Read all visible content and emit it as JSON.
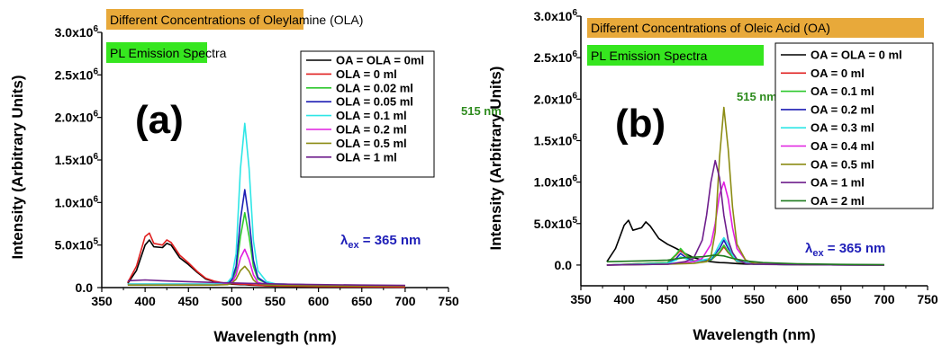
{
  "colors": {
    "orange_banner": "#E8A93A",
    "green_banner": "#36E61F",
    "peak_label": "#2E8B1E",
    "excitation_label": "#1F1FB8"
  },
  "chart_data": [
    {
      "type": "line",
      "panel_label": "(a)",
      "title": "Different Concentrations of Oleylamine (OLA)",
      "subtitle": "PL Emission Spectra",
      "xlabel": "Wavelength (nm)",
      "ylabel": "Intensity (Arbitrary Units)",
      "xlim": [
        350,
        750
      ],
      "ylim": [
        0,
        3000000
      ],
      "x_ticks": [
        "350",
        "400",
        "450",
        "500",
        "550",
        "600",
        "650",
        "700",
        "750"
      ],
      "y_ticks": [
        {
          "value": 0,
          "base": "0.0",
          "exp": ""
        },
        {
          "value": 500000,
          "base": "5.0x10",
          "exp": "5"
        },
        {
          "value": 1000000,
          "base": "1.0x10",
          "exp": "6"
        },
        {
          "value": 1500000,
          "base": "1.5x10",
          "exp": "6"
        },
        {
          "value": 2000000,
          "base": "2.0x10",
          "exp": "6"
        },
        {
          "value": 2500000,
          "base": "2.5x10",
          "exp": "6"
        },
        {
          "value": 3000000,
          "base": "3.0x10",
          "exp": "6"
        }
      ],
      "peak_annotation": "515 nm",
      "excitation_annotation": {
        "prefix": "λ",
        "sub": "ex",
        "suffix": " = 365 nm"
      },
      "legend_position": "top-right",
      "series": [
        {
          "name": "OA = OLA = 0ml",
          "color": "#000000",
          "x": [
            380,
            390,
            400,
            405,
            410,
            420,
            425,
            430,
            440,
            450,
            460,
            470,
            480,
            490,
            500,
            510,
            515,
            520,
            530,
            540,
            550,
            560,
            600,
            650,
            700
          ],
          "y": [
            50000,
            200000,
            500000,
            560000,
            480000,
            470000,
            520000,
            500000,
            350000,
            270000,
            180000,
            100000,
            70000,
            50000,
            40000,
            35000,
            35000,
            30000,
            25000,
            20000,
            18000,
            16000,
            12000,
            8000,
            5000
          ]
        },
        {
          "name": "OLA = 0 ml",
          "color": "#E02020",
          "x": [
            380,
            390,
            400,
            405,
            410,
            420,
            425,
            430,
            440,
            450,
            460,
            470,
            480,
            490,
            500,
            510,
            515,
            520,
            530,
            540,
            550,
            560,
            600,
            650,
            700
          ],
          "y": [
            60000,
            250000,
            600000,
            640000,
            520000,
            500000,
            560000,
            530000,
            380000,
            290000,
            190000,
            110000,
            75000,
            55000,
            45000,
            40000,
            40000,
            35000,
            28000,
            22000,
            20000,
            18000,
            13000,
            9000,
            6000
          ]
        },
        {
          "name": "OLA = 0.02 ml",
          "color": "#2EC82E",
          "x": [
            380,
            450,
            480,
            495,
            500,
            505,
            510,
            515,
            520,
            525,
            530,
            540,
            550,
            560,
            600,
            700
          ],
          "y": [
            40000,
            40000,
            40000,
            50000,
            80000,
            200000,
            600000,
            880000,
            600000,
            250000,
            100000,
            50000,
            40000,
            40000,
            30000,
            20000
          ]
        },
        {
          "name": "OLA = 0.05 ml",
          "color": "#1E1EB4",
          "x": [
            380,
            450,
            480,
            495,
            500,
            505,
            510,
            515,
            520,
            525,
            530,
            540,
            550,
            560,
            600,
            700
          ],
          "y": [
            40000,
            40000,
            40000,
            50000,
            90000,
            250000,
            800000,
            1150000,
            800000,
            320000,
            120000,
            50000,
            40000,
            40000,
            30000,
            20000
          ]
        },
        {
          "name": "OLA = 0.1 ml",
          "color": "#2EE6E6",
          "x": [
            380,
            450,
            480,
            495,
            500,
            505,
            510,
            515,
            520,
            525,
            530,
            540,
            550,
            560,
            600,
            700
          ],
          "y": [
            40000,
            40000,
            40000,
            60000,
            120000,
            400000,
            1400000,
            1930000,
            1400000,
            550000,
            200000,
            70000,
            45000,
            40000,
            30000,
            20000
          ]
        },
        {
          "name": "OLA = 0.2 ml",
          "color": "#E01EE0",
          "x": [
            380,
            450,
            480,
            495,
            500,
            505,
            510,
            515,
            520,
            525,
            530,
            540,
            550,
            560,
            600,
            700
          ],
          "y": [
            30000,
            30000,
            30000,
            40000,
            60000,
            150000,
            350000,
            450000,
            330000,
            150000,
            60000,
            35000,
            30000,
            30000,
            25000,
            20000
          ]
        },
        {
          "name": "OLA = 0.5 ml",
          "color": "#8C8C14",
          "x": [
            380,
            450,
            480,
            495,
            500,
            505,
            510,
            515,
            520,
            525,
            530,
            540,
            550,
            560,
            600,
            700
          ],
          "y": [
            30000,
            30000,
            30000,
            35000,
            50000,
            100000,
            200000,
            250000,
            190000,
            90000,
            45000,
            30000,
            28000,
            25000,
            20000,
            18000
          ]
        },
        {
          "name": "OLA = 1 ml",
          "color": "#6E1E8C",
          "x": [
            380,
            400,
            420,
            450,
            480,
            500,
            520,
            540,
            560,
            600,
            650,
            700
          ],
          "y": [
            80000,
            90000,
            80000,
            70000,
            60000,
            55000,
            50000,
            45000,
            40000,
            35000,
            30000,
            25000
          ]
        }
      ]
    },
    {
      "type": "line",
      "panel_label": "(b)",
      "title": "Different Concentrations of Oleic Acid (OA)",
      "subtitle": "PL Emission Spectra",
      "xlabel": "Wavelength (nm)",
      "ylabel": "Intensity (Arbitrary Units)",
      "xlim": [
        350,
        750
      ],
      "ylim": [
        -250000,
        3000000
      ],
      "x_ticks": [
        "350",
        "400",
        "450",
        "500",
        "550",
        "600",
        "650",
        "700",
        "750"
      ],
      "y_ticks": [
        {
          "value": 0,
          "base": "0.0",
          "exp": ""
        },
        {
          "value": 500000,
          "base": "5.0x10",
          "exp": "5"
        },
        {
          "value": 1000000,
          "base": "1.0x10",
          "exp": "6"
        },
        {
          "value": 1500000,
          "base": "1.5x10",
          "exp": "6"
        },
        {
          "value": 2000000,
          "base": "2.0x10",
          "exp": "6"
        },
        {
          "value": 2500000,
          "base": "2.5x10",
          "exp": "6"
        },
        {
          "value": 3000000,
          "base": "3.0x10",
          "exp": "6"
        }
      ],
      "peak_annotation": "515 nm",
      "excitation_annotation": {
        "prefix": "λ",
        "sub": "ex",
        "suffix": " = 365 nm"
      },
      "legend_position": "top-right",
      "series": [
        {
          "name": "OA = OLA = 0 ml",
          "color": "#000000",
          "x": [
            380,
            390,
            400,
            405,
            410,
            420,
            425,
            430,
            440,
            450,
            460,
            470,
            480,
            490,
            500,
            510,
            515,
            520,
            530,
            540,
            550,
            560,
            600,
            650,
            700
          ],
          "y": [
            40000,
            200000,
            480000,
            540000,
            420000,
            450000,
            520000,
            470000,
            320000,
            250000,
            200000,
            140000,
            90000,
            60000,
            40000,
            30000,
            28000,
            25000,
            18000,
            12000,
            10000,
            8000,
            5000,
            3000,
            2000
          ]
        },
        {
          "name": "OA = 0 ml",
          "color": "#E02020",
          "x": [
            380,
            450,
            460,
            465,
            470,
            480,
            500,
            510,
            515,
            520,
            530,
            550,
            600,
            700
          ],
          "y": [
            0,
            30000,
            120000,
            180000,
            130000,
            50000,
            60000,
            150000,
            220000,
            150000,
            40000,
            10000,
            5000,
            0
          ]
        },
        {
          "name": "OA = 0.1 ml",
          "color": "#2EC82E",
          "x": [
            380,
            450,
            460,
            465,
            470,
            480,
            500,
            510,
            515,
            520,
            530,
            550,
            600,
            700
          ],
          "y": [
            0,
            30000,
            130000,
            200000,
            140000,
            50000,
            60000,
            160000,
            240000,
            160000,
            45000,
            10000,
            5000,
            0
          ]
        },
        {
          "name": "OA = 0.2 ml",
          "color": "#1E1EB4",
          "x": [
            380,
            450,
            460,
            465,
            470,
            480,
            500,
            510,
            515,
            520,
            530,
            550,
            600,
            700
          ],
          "y": [
            0,
            20000,
            80000,
            140000,
            100000,
            40000,
            70000,
            200000,
            300000,
            200000,
            50000,
            10000,
            5000,
            0
          ]
        },
        {
          "name": "OA = 0.3 ml",
          "color": "#2EE6E6",
          "x": [
            380,
            450,
            460,
            465,
            470,
            480,
            500,
            505,
            510,
            515,
            520,
            525,
            530,
            550,
            600,
            700
          ],
          "y": [
            0,
            20000,
            60000,
            100000,
            80000,
            40000,
            80000,
            150000,
            250000,
            330000,
            250000,
            120000,
            50000,
            10000,
            5000,
            0
          ]
        },
        {
          "name": "OA = 0.4 ml",
          "color": "#E01EE0",
          "x": [
            380,
            450,
            470,
            480,
            490,
            500,
            505,
            510,
            515,
            520,
            525,
            530,
            540,
            550,
            600,
            700
          ],
          "y": [
            0,
            10000,
            30000,
            40000,
            80000,
            250000,
            500000,
            850000,
            1000000,
            800000,
            450000,
            200000,
            60000,
            20000,
            5000,
            0
          ]
        },
        {
          "name": "OA = 0.5 ml",
          "color": "#8C8C14",
          "x": [
            380,
            450,
            480,
            495,
            500,
            505,
            510,
            515,
            520,
            525,
            530,
            540,
            550,
            560,
            600,
            700
          ],
          "y": [
            0,
            10000,
            20000,
            40000,
            100000,
            400000,
            1300000,
            1900000,
            1400000,
            700000,
            250000,
            60000,
            20000,
            10000,
            5000,
            0
          ]
        },
        {
          "name": "OA = 1 ml",
          "color": "#6E1E8C",
          "x": [
            380,
            450,
            470,
            480,
            490,
            495,
            500,
            505,
            510,
            515,
            520,
            525,
            530,
            540,
            550,
            600,
            700
          ],
          "y": [
            0,
            10000,
            40000,
            80000,
            300000,
            600000,
            1000000,
            1260000,
            1050000,
            600000,
            300000,
            150000,
            70000,
            20000,
            10000,
            5000,
            0
          ]
        },
        {
          "name": "OA = 2 ml",
          "color": "#1E7A1E",
          "x": [
            380,
            420,
            450,
            470,
            490,
            505,
            515,
            525,
            540,
            560,
            600,
            650,
            700
          ],
          "y": [
            40000,
            50000,
            60000,
            90000,
            100000,
            120000,
            110000,
            80000,
            50000,
            30000,
            15000,
            8000,
            5000
          ]
        }
      ]
    }
  ]
}
